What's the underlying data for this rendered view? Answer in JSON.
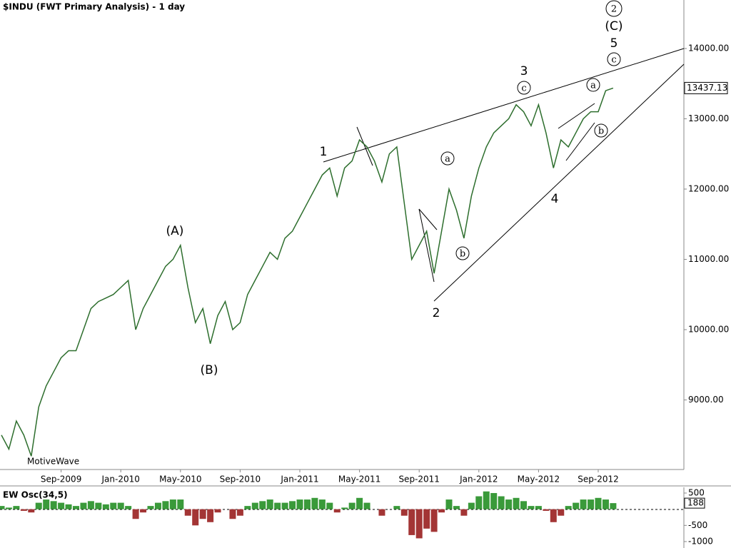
{
  "chart_data": [
    {
      "type": "line",
      "title": "$INDU (FWT Primary Analysis) - 1 day",
      "watermark": "MotiveWave",
      "categories": [
        null,
        null,
        null,
        null,
        null,
        null,
        null,
        null,
        "Sep-2009",
        null,
        null,
        null,
        null,
        null,
        null,
        null,
        "Jan-2010",
        null,
        null,
        null,
        null,
        null,
        null,
        null,
        "May-2010",
        null,
        null,
        null,
        null,
        null,
        null,
        null,
        "Sep-2010",
        null,
        null,
        null,
        null,
        null,
        null,
        null,
        "Jan-2011",
        null,
        null,
        null,
        null,
        null,
        null,
        null,
        "May-2011",
        null,
        null,
        null,
        null,
        null,
        null,
        null,
        "Sep-2011",
        null,
        null,
        null,
        null,
        null,
        null,
        null,
        "Jan-2012",
        null,
        null,
        null,
        null,
        null,
        null,
        null,
        "May-2012",
        null,
        null,
        null,
        null,
        null,
        null,
        null,
        "Sep-2012",
        null,
        null
      ],
      "values": [
        8500,
        8300,
        8700,
        8500,
        8200,
        8900,
        9200,
        9400,
        9600,
        9700,
        9700,
        10000,
        10300,
        10400,
        10450,
        10500,
        10600,
        10700,
        10000,
        10300,
        10500,
        10700,
        10900,
        11000,
        11200,
        10600,
        10100,
        10300,
        9800,
        10200,
        10400,
        10000,
        10100,
        10500,
        10700,
        10900,
        11100,
        11000,
        11300,
        11400,
        11600,
        11800,
        12000,
        12200,
        12300,
        11900,
        12300,
        12400,
        12700,
        12600,
        12400,
        12100,
        12500,
        12600,
        11800,
        11000,
        11200,
        11400,
        10800,
        11400,
        12000,
        11700,
        11300,
        11900,
        12300,
        12600,
        12800,
        12900,
        13000,
        13200,
        13100,
        12900,
        13200,
        12800,
        12300,
        12700,
        12600,
        12800,
        13000,
        13100,
        13100,
        13400,
        13437.13
      ],
      "color": "#2d6e2d",
      "ylim": [
        8010,
        14690
      ],
      "yticks": [
        {
          "value": 9000,
          "label": "9000.00"
        },
        {
          "value": 10000,
          "label": "10000.00"
        },
        {
          "value": 11000,
          "label": "11000.00"
        },
        {
          "value": 12000,
          "label": "12000.00"
        },
        {
          "value": 13000,
          "label": "13000.00"
        },
        {
          "value": 14000,
          "label": "14000.00"
        }
      ],
      "annotations": [
        "(A)",
        "(B)",
        "1",
        "2",
        "3",
        "4",
        "5",
        "(C)",
        "2",
        "a",
        "b",
        "c",
        "a",
        "b",
        "c"
      ]
    },
    {
      "type": "bar",
      "title": "EW Osc(34,5)",
      "values": [
        100,
        50,
        100,
        -50,
        -100,
        200,
        300,
        250,
        200,
        150,
        100,
        200,
        250,
        200,
        150,
        200,
        200,
        100,
        -300,
        -100,
        100,
        200,
        250,
        300,
        300,
        -200,
        -500,
        -300,
        -400,
        -100,
        0,
        -300,
        -200,
        100,
        200,
        250,
        300,
        200,
        200,
        250,
        300,
        300,
        350,
        300,
        200,
        -100,
        50,
        200,
        350,
        200,
        0,
        -200,
        0,
        100,
        -200,
        -800,
        -900,
        -600,
        -700,
        -100,
        300,
        100,
        -200,
        200,
        400,
        550,
        500,
        400,
        300,
        350,
        250,
        100,
        100,
        -50,
        -400,
        -200,
        100,
        200,
        300,
        300,
        350,
        300,
        188
      ],
      "up_color": "#3a9a3a",
      "down_color": "#a33535",
      "ylim": [
        -1199,
        632
      ],
      "yticks": [
        500,
        -500,
        -1000
      ]
    }
  ]
}
